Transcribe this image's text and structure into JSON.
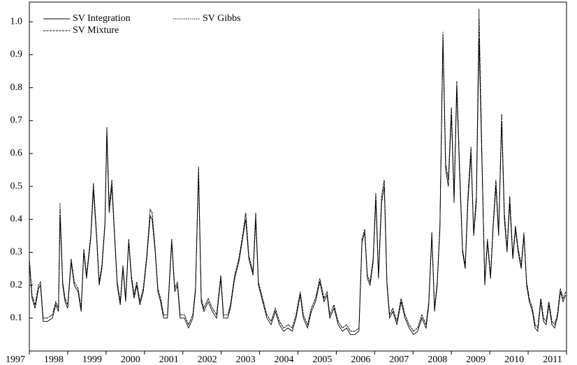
{
  "chart_data": {
    "type": "line",
    "x": [
      1997,
      1997.07,
      1997.15,
      1997.24,
      1997.29,
      1997.36,
      1997.47,
      1997.6,
      1997.69,
      1997.76,
      1997.8,
      1997.87,
      1997.93,
      1998,
      1998.09,
      1998.17,
      1998.27,
      1998.35,
      1998.42,
      1998.49,
      1998.6,
      1998.67,
      1998.75,
      1998.82,
      1998.89,
      1998.97,
      1999.02,
      1999.08,
      1999.15,
      1999.22,
      1999.29,
      1999.37,
      1999.44,
      1999.51,
      1999.59,
      1999.66,
      1999.73,
      1999.8,
      1999.88,
      1999.97,
      2000.06,
      2000.15,
      2000.2,
      2000.28,
      2000.35,
      2000.42,
      2000.5,
      2000.6,
      2000.71,
      2000.79,
      2000.86,
      2000.93,
      2001.04,
      2001.15,
      2001.26,
      2001.33,
      2001.41,
      2001.48,
      2001.55,
      2001.66,
      2001.77,
      2001.88,
      2001.99,
      2002.06,
      2002.17,
      2002.24,
      2002.35,
      2002.46,
      2002.57,
      2002.64,
      2002.72,
      2002.83,
      2002.9,
      2002.97,
      2003.08,
      2003.19,
      2003.3,
      2003.41,
      2003.52,
      2003.63,
      2003.74,
      2003.85,
      2003.95,
      2004.06,
      2004.14,
      2004.25,
      2004.35,
      2004.46,
      2004.57,
      2004.68,
      2004.76,
      2004.83,
      2004.94,
      2005.05,
      2005.16,
      2005.27,
      2005.37,
      2005.48,
      2005.59,
      2005.67,
      2005.74,
      2005.81,
      2005.88,
      2005.96,
      2006.03,
      2006.1,
      2006.18,
      2006.25,
      2006.32,
      2006.39,
      2006.47,
      2006.58,
      2006.69,
      2006.79,
      2006.9,
      2007.01,
      2007.12,
      2007.23,
      2007.34,
      2007.41,
      2007.49,
      2007.56,
      2007.63,
      2007.7,
      2007.78,
      2007.85,
      2007.92,
      2008,
      2008.07,
      2008.14,
      2008.21,
      2008.29,
      2008.36,
      2008.43,
      2008.51,
      2008.58,
      2008.65,
      2008.72,
      2008.8,
      2008.87,
      2008.94,
      2009.02,
      2009.09,
      2009.16,
      2009.23,
      2009.31,
      2009.38,
      2009.45,
      2009.52,
      2009.6,
      2009.67,
      2009.74,
      2009.82,
      2009.89,
      2009.96,
      2010.03,
      2010.11,
      2010.18,
      2010.25,
      2010.33,
      2010.4,
      2010.47,
      2010.54,
      2010.62,
      2010.69,
      2010.76,
      2010.84,
      2010.91,
      2010.98
    ],
    "series": [
      {
        "name": "SV Integration",
        "color": "#000000",
        "dash": "solid",
        "values": [
          0.27,
          0.16,
          0.13,
          0.19,
          0.2,
          0.09,
          0.09,
          0.1,
          0.14,
          0.12,
          0.41,
          0.2,
          0.15,
          0.13,
          0.27,
          0.2,
          0.18,
          0.12,
          0.3,
          0.22,
          0.34,
          0.49,
          0.35,
          0.2,
          0.25,
          0.38,
          0.66,
          0.42,
          0.5,
          0.35,
          0.2,
          0.14,
          0.25,
          0.15,
          0.33,
          0.22,
          0.16,
          0.2,
          0.14,
          0.18,
          0.28,
          0.41,
          0.4,
          0.3,
          0.18,
          0.15,
          0.1,
          0.1,
          0.33,
          0.18,
          0.2,
          0.1,
          0.1,
          0.07,
          0.1,
          0.18,
          0.54,
          0.15,
          0.12,
          0.15,
          0.12,
          0.1,
          0.22,
          0.1,
          0.1,
          0.13,
          0.22,
          0.27,
          0.35,
          0.4,
          0.28,
          0.23,
          0.4,
          0.2,
          0.15,
          0.1,
          0.08,
          0.12,
          0.08,
          0.06,
          0.07,
          0.06,
          0.1,
          0.17,
          0.1,
          0.07,
          0.12,
          0.15,
          0.21,
          0.15,
          0.17,
          0.1,
          0.13,
          0.08,
          0.06,
          0.07,
          0.05,
          0.05,
          0.06,
          0.33,
          0.36,
          0.22,
          0.2,
          0.27,
          0.46,
          0.22,
          0.45,
          0.5,
          0.2,
          0.1,
          0.12,
          0.08,
          0.15,
          0.1,
          0.07,
          0.05,
          0.06,
          0.1,
          0.07,
          0.14,
          0.35,
          0.12,
          0.2,
          0.37,
          0.95,
          0.55,
          0.5,
          0.72,
          0.45,
          0.8,
          0.55,
          0.3,
          0.25,
          0.45,
          0.6,
          0.35,
          0.45,
          0.95,
          0.55,
          0.2,
          0.33,
          0.22,
          0.38,
          0.5,
          0.35,
          0.7,
          0.4,
          0.3,
          0.45,
          0.28,
          0.37,
          0.3,
          0.25,
          0.35,
          0.2,
          0.15,
          0.12,
          0.07,
          0.06,
          0.15,
          0.09,
          0.08,
          0.14,
          0.08,
          0.07,
          0.1,
          0.18,
          0.15,
          0.17
        ]
      },
      {
        "name": "SV Mixture",
        "color": "#000000",
        "dash": "dashed",
        "values": [
          0.28,
          0.17,
          0.14,
          0.2,
          0.21,
          0.1,
          0.1,
          0.11,
          0.15,
          0.13,
          0.43,
          0.21,
          0.16,
          0.14,
          0.28,
          0.21,
          0.19,
          0.13,
          0.31,
          0.23,
          0.35,
          0.51,
          0.36,
          0.21,
          0.26,
          0.39,
          0.68,
          0.44,
          0.52,
          0.36,
          0.21,
          0.15,
          0.26,
          0.16,
          0.34,
          0.23,
          0.17,
          0.21,
          0.15,
          0.19,
          0.29,
          0.43,
          0.42,
          0.31,
          0.19,
          0.16,
          0.11,
          0.11,
          0.34,
          0.19,
          0.21,
          0.11,
          0.11,
          0.08,
          0.11,
          0.19,
          0.56,
          0.16,
          0.13,
          0.16,
          0.13,
          0.11,
          0.23,
          0.11,
          0.11,
          0.14,
          0.23,
          0.28,
          0.36,
          0.42,
          0.29,
          0.24,
          0.42,
          0.21,
          0.16,
          0.11,
          0.09,
          0.13,
          0.09,
          0.07,
          0.08,
          0.07,
          0.11,
          0.18,
          0.11,
          0.08,
          0.13,
          0.16,
          0.22,
          0.16,
          0.18,
          0.11,
          0.14,
          0.09,
          0.07,
          0.08,
          0.06,
          0.06,
          0.07,
          0.34,
          0.37,
          0.23,
          0.21,
          0.28,
          0.48,
          0.23,
          0.47,
          0.52,
          0.21,
          0.11,
          0.13,
          0.09,
          0.16,
          0.11,
          0.08,
          0.06,
          0.07,
          0.11,
          0.08,
          0.15,
          0.36,
          0.13,
          0.21,
          0.38,
          0.97,
          0.57,
          0.52,
          0.74,
          0.47,
          0.82,
          0.57,
          0.31,
          0.26,
          0.47,
          0.62,
          0.36,
          0.47,
          1.01,
          0.57,
          0.21,
          0.34,
          0.23,
          0.39,
          0.52,
          0.36,
          0.72,
          0.42,
          0.31,
          0.47,
          0.29,
          0.38,
          0.31,
          0.26,
          0.36,
          0.21,
          0.16,
          0.13,
          0.08,
          0.07,
          0.16,
          0.1,
          0.09,
          0.15,
          0.09,
          0.08,
          0.11,
          0.19,
          0.16,
          0.18
        ]
      },
      {
        "name": "SV Gibbs",
        "color": "#000000",
        "dash": "dotted",
        "values": [
          0.28,
          0.17,
          0.14,
          0.2,
          0.21,
          0.1,
          0.1,
          0.11,
          0.15,
          0.13,
          0.45,
          0.21,
          0.16,
          0.14,
          0.28,
          0.21,
          0.19,
          0.13,
          0.31,
          0.23,
          0.35,
          0.51,
          0.36,
          0.21,
          0.26,
          0.39,
          0.68,
          0.44,
          0.52,
          0.36,
          0.21,
          0.15,
          0.26,
          0.16,
          0.34,
          0.23,
          0.17,
          0.21,
          0.15,
          0.19,
          0.29,
          0.43,
          0.42,
          0.31,
          0.19,
          0.16,
          0.11,
          0.11,
          0.34,
          0.19,
          0.21,
          0.11,
          0.11,
          0.08,
          0.11,
          0.19,
          0.56,
          0.16,
          0.13,
          0.16,
          0.13,
          0.11,
          0.23,
          0.11,
          0.11,
          0.14,
          0.23,
          0.28,
          0.36,
          0.42,
          0.29,
          0.24,
          0.42,
          0.21,
          0.16,
          0.11,
          0.09,
          0.13,
          0.09,
          0.07,
          0.08,
          0.07,
          0.11,
          0.18,
          0.11,
          0.08,
          0.13,
          0.16,
          0.22,
          0.16,
          0.18,
          0.11,
          0.14,
          0.09,
          0.07,
          0.08,
          0.06,
          0.06,
          0.07,
          0.34,
          0.37,
          0.23,
          0.21,
          0.28,
          0.48,
          0.23,
          0.47,
          0.52,
          0.21,
          0.11,
          0.13,
          0.09,
          0.16,
          0.11,
          0.08,
          0.06,
          0.07,
          0.11,
          0.08,
          0.15,
          0.36,
          0.13,
          0.21,
          0.38,
          0.96,
          0.57,
          0.52,
          0.74,
          0.47,
          0.82,
          0.57,
          0.31,
          0.26,
          0.47,
          0.62,
          0.36,
          0.47,
          1.04,
          0.57,
          0.21,
          0.34,
          0.23,
          0.39,
          0.52,
          0.36,
          0.72,
          0.42,
          0.31,
          0.47,
          0.29,
          0.38,
          0.31,
          0.26,
          0.36,
          0.21,
          0.16,
          0.13,
          0.08,
          0.07,
          0.16,
          0.1,
          0.09,
          0.15,
          0.09,
          0.08,
          0.11,
          0.19,
          0.16,
          0.18
        ]
      }
    ],
    "xlim": [
      1997,
      2011
    ],
    "xticks": [
      1997,
      1998,
      1999,
      2000,
      2001,
      2002,
      2003,
      2004,
      2005,
      2006,
      2007,
      2008,
      2009,
      2010,
      2011
    ],
    "ylim": [
      0,
      1.06
    ],
    "yticks": [
      0.1,
      0.2,
      0.3,
      0.4,
      0.5,
      0.6,
      0.7,
      0.8,
      0.9,
      {
        "value": 1,
        "label": "1.0"
      }
    ],
    "grid": false,
    "legend": "upper left"
  }
}
